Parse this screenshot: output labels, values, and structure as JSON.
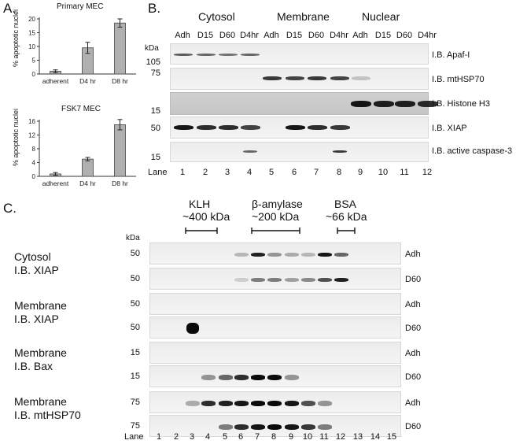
{
  "panel_a": {
    "letter": "A.",
    "ylabel": "% apoptotic nuclei",
    "charts": [
      {
        "title": "Primary MEC",
        "type": "bar",
        "categories": [
          "adherent",
          "D4 hr",
          "D8 hr"
        ],
        "values": [
          1,
          9.5,
          18.5
        ],
        "errors": [
          0.5,
          2,
          1.5
        ],
        "yticks": [
          "0",
          "5",
          "10",
          "15",
          "20"
        ],
        "ylim": [
          0,
          20
        ]
      },
      {
        "title": "FSK7 MEC",
        "type": "bar",
        "categories": [
          "adherent",
          "D4 hr",
          "D8 hr"
        ],
        "values": [
          0.7,
          5,
          15
        ],
        "errors": [
          0.4,
          0.5,
          1.5
        ],
        "yticks": [
          "0",
          "4",
          "8",
          "12",
          "16"
        ],
        "ylim": [
          0,
          16
        ]
      }
    ]
  },
  "panel_b": {
    "letter": "B.",
    "fractions": [
      "Cytosol",
      "Membrane",
      "Nuclear"
    ],
    "lane_headers": [
      "Adh",
      "D15",
      "D60",
      "D4hr",
      "Adh",
      "D15",
      "D60",
      "D4hr",
      "Adh",
      "D15",
      "D60",
      "D4hr"
    ],
    "kda_label": "kDa",
    "mw_markers": [
      "105",
      "75",
      "15",
      "50",
      "15"
    ],
    "blots": [
      "I.B. Apaf-I",
      "I.B. mtHSP70",
      "I.B. Histone H3",
      "I.B. XIAP",
      "I.B. active caspase-3"
    ],
    "lane_label": "Lane",
    "lanes": [
      "1",
      "2",
      "3",
      "4",
      "5",
      "6",
      "7",
      "8",
      "9",
      "10",
      "11",
      "12"
    ]
  },
  "panel_c": {
    "letter": "C.",
    "standards": [
      {
        "name": "KLH",
        "size": "~400 kDa"
      },
      {
        "name": "β-amylase",
        "size": "~200 kDa"
      },
      {
        "name": "BSA",
        "size": "~66 kDa"
      }
    ],
    "kda_label": "kDa",
    "groups": [
      {
        "label1": "Cytosol",
        "label2": "I.B. XIAP",
        "mw": [
          "50",
          "50"
        ],
        "conditions": [
          "Adh",
          "D60"
        ]
      },
      {
        "label1": "Membrane",
        "label2": "I.B. XIAP",
        "mw": [
          "50",
          "50"
        ],
        "conditions": [
          "Adh",
          "D60"
        ]
      },
      {
        "label1": "Membrane",
        "label2": "I.B. Bax",
        "mw": [
          "15",
          "15"
        ],
        "conditions": [
          "Adh",
          "D60"
        ]
      },
      {
        "label1": "Membrane",
        "label2": "I.B. mtHSP70",
        "mw": [
          "75",
          "75"
        ],
        "conditions": [
          "Adh",
          "D60"
        ]
      }
    ],
    "lane_label": "Lane",
    "lanes": [
      "1",
      "2",
      "3",
      "4",
      "5",
      "6",
      "7",
      "8",
      "9",
      "10",
      "11",
      "12",
      "13",
      "14",
      "15"
    ]
  }
}
